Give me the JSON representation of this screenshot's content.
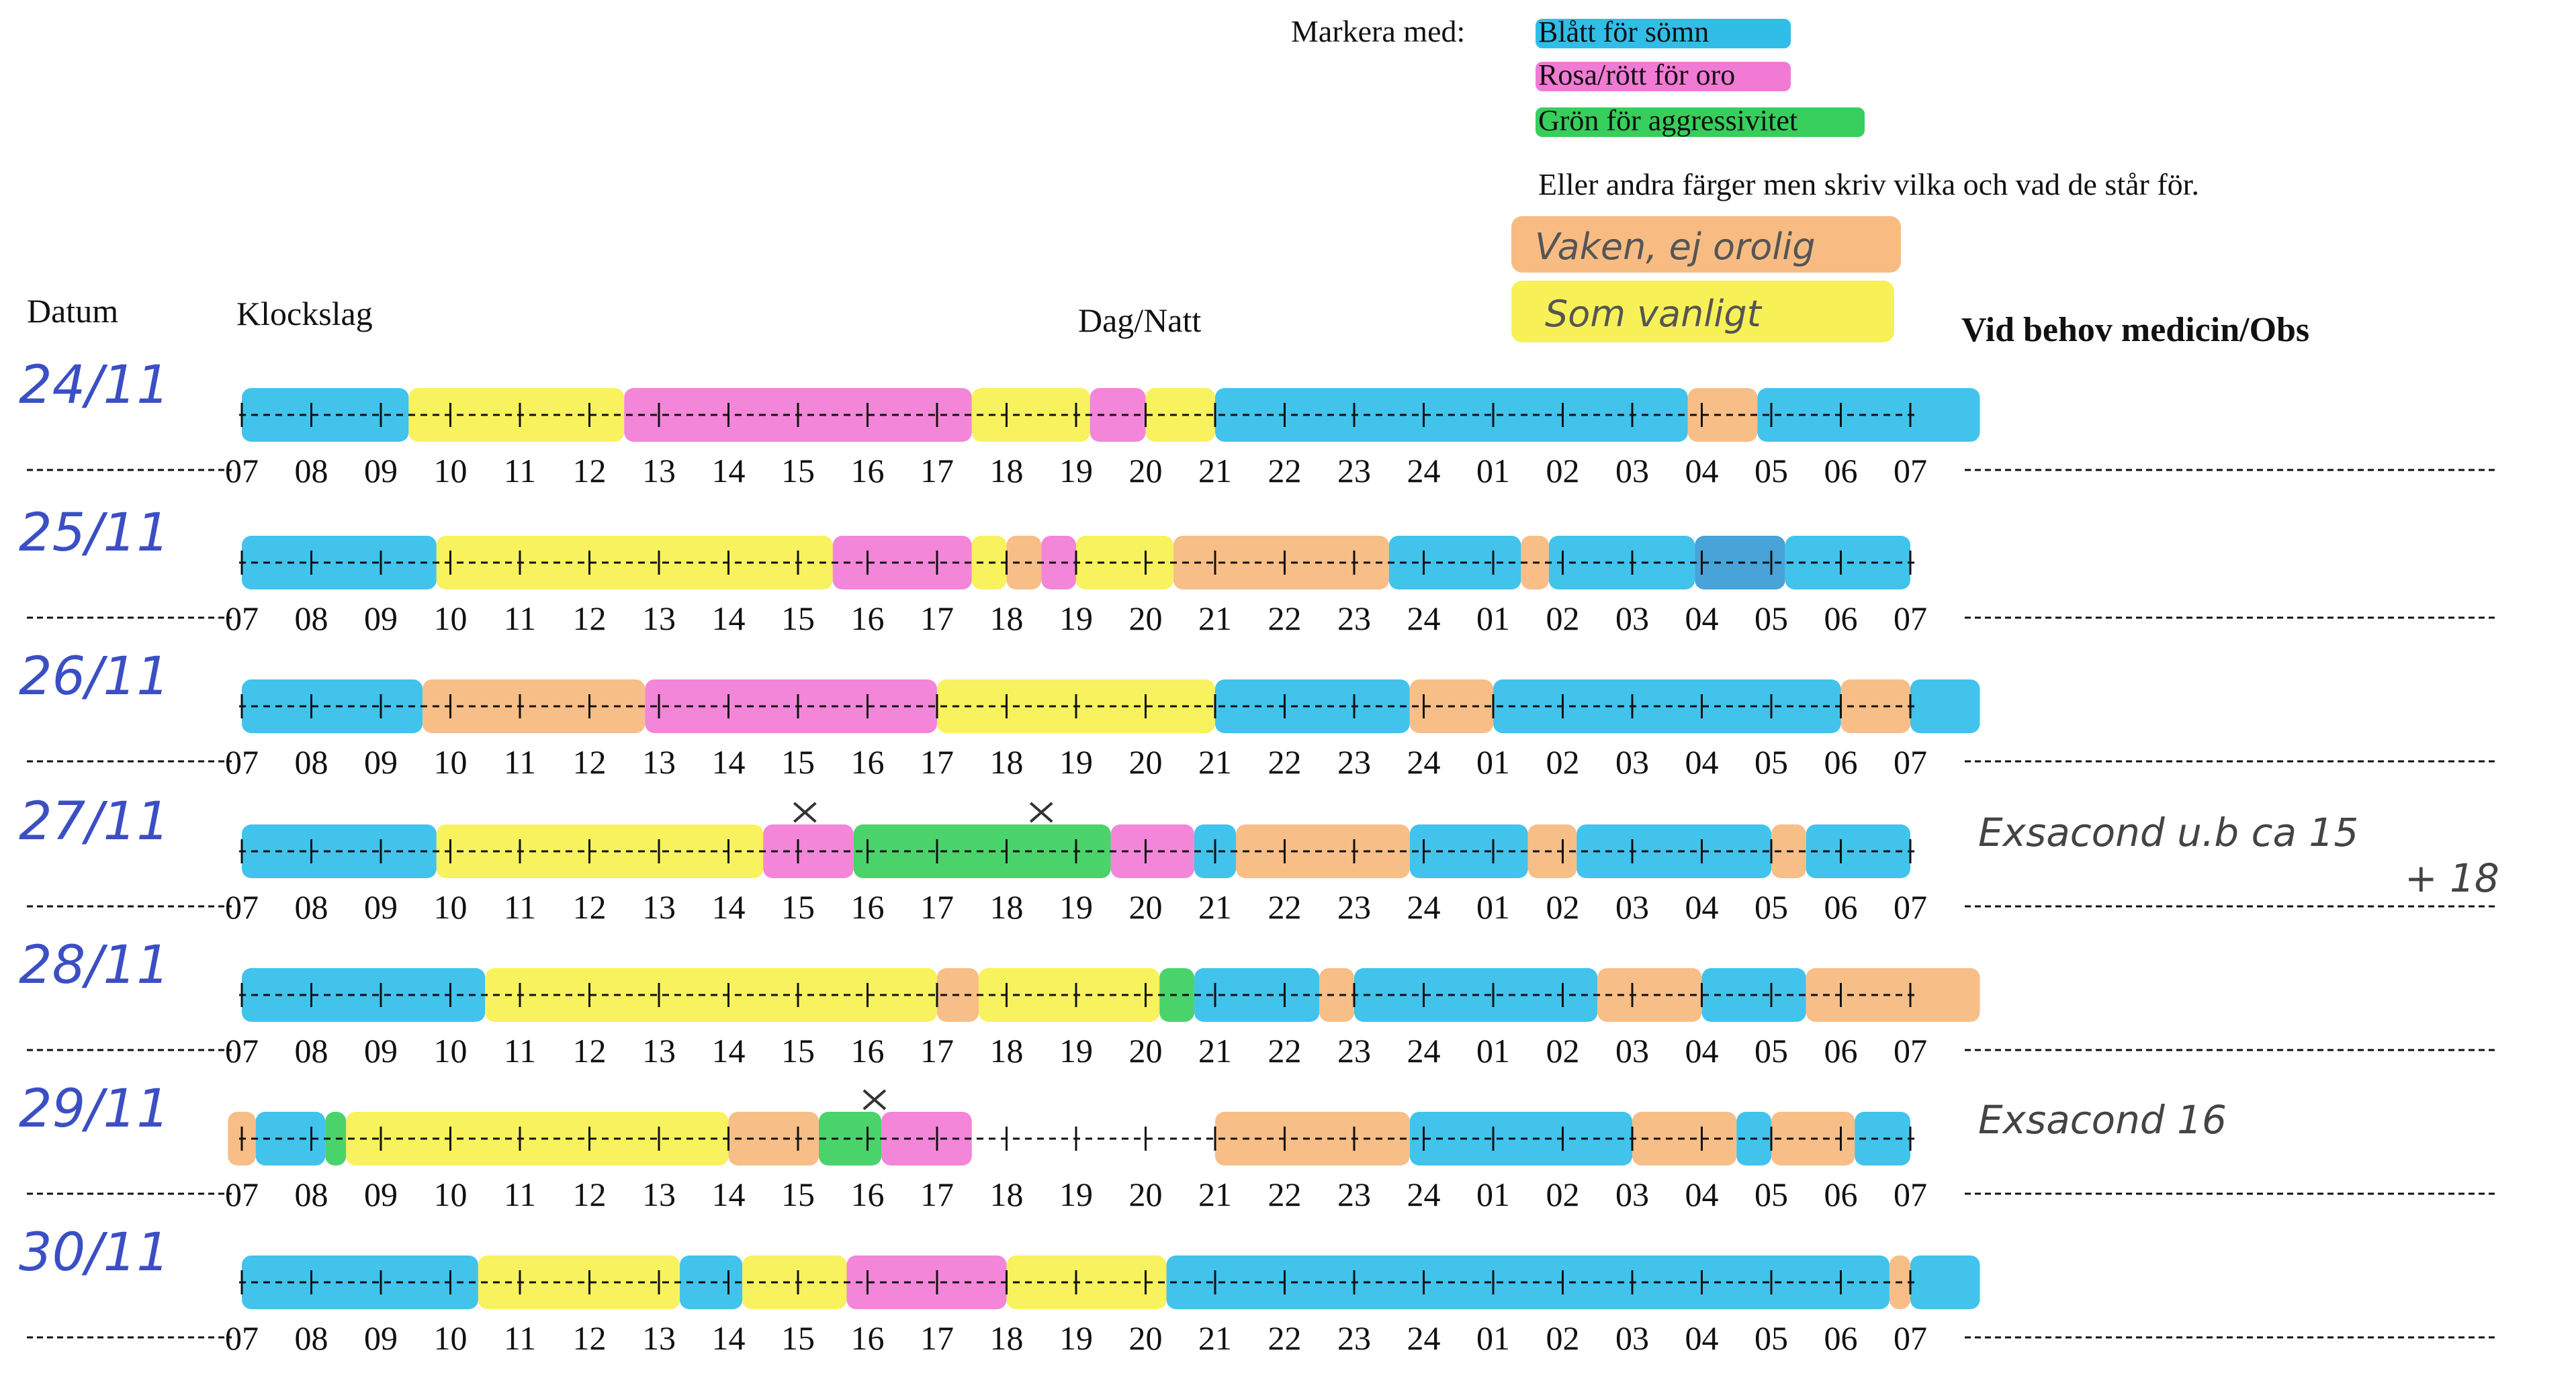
{
  "legend": {
    "intro": "Markera med:",
    "items": [
      {
        "text": "Blått för sömn",
        "color": "#19b6e6"
      },
      {
        "text": "Rosa/rött för oro",
        "color": "#f06bd0"
      },
      {
        "text": "Grön för aggressivitet",
        "color": "#22c94a"
      },
      {
        "text": "Eller andra färger men skriv vilka och vad de står för.",
        "color": ""
      }
    ],
    "custom": [
      {
        "text": "Vaken, ej orolig",
        "color": "#f7b06d"
      },
      {
        "text": "Som vanligt",
        "color": "#f6ef3a"
      }
    ]
  },
  "headers": {
    "datum": "Datum",
    "klockslag": "Klockslag",
    "dagnatt": "Dag/Natt",
    "obs": "Vid behov medicin/Obs"
  },
  "hours": [
    "07",
    "08",
    "09",
    "10",
    "11",
    "12",
    "13",
    "14",
    "15",
    "16",
    "17",
    "18",
    "19",
    "20",
    "21",
    "22",
    "23",
    "24",
    "01",
    "02",
    "03",
    "04",
    "05",
    "06",
    "07"
  ],
  "colors": {
    "B": "#19b6e6",
    "P": "#f06bd0",
    "G": "#22c94a",
    "O": "#f7b06d",
    "Y": "#f6ef3a",
    "D": "#1e8fd0"
  },
  "rows": [
    {
      "date": "24/11",
      "notes": [],
      "crosses": [],
      "segments": [
        [
          "B",
          0,
          2.4
        ],
        [
          "Y",
          2.4,
          5.5
        ],
        [
          "P",
          5.5,
          10.5
        ],
        [
          "Y",
          10.5,
          12.2
        ],
        [
          "P",
          12.2,
          13
        ],
        [
          "Y",
          13,
          14
        ],
        [
          "B",
          14,
          20.8
        ],
        [
          "O",
          20.8,
          21.8
        ],
        [
          "B",
          21.8,
          25
        ]
      ]
    },
    {
      "date": "25/11",
      "notes": [],
      "crosses": [],
      "segments": [
        [
          "B",
          0,
          2.8
        ],
        [
          "Y",
          2.8,
          8.5
        ],
        [
          "P",
          8.5,
          10.5
        ],
        [
          "Y",
          10.5,
          11
        ],
        [
          "O",
          11,
          11.5
        ],
        [
          "P",
          11.5,
          12
        ],
        [
          "Y",
          12,
          13.4
        ],
        [
          "O",
          13.4,
          16.5
        ],
        [
          "B",
          16.5,
          18.4
        ],
        [
          "O",
          18.4,
          18.8
        ],
        [
          "B",
          18.8,
          20.9
        ],
        [
          "D",
          20.9,
          22.2
        ],
        [
          "B",
          22.2,
          24
        ]
      ]
    },
    {
      "date": "26/11",
      "notes": [],
      "crosses": [],
      "segments": [
        [
          "B",
          0,
          2.6
        ],
        [
          "O",
          2.6,
          5.8
        ],
        [
          "P",
          5.8,
          10
        ],
        [
          "Y",
          10,
          14
        ],
        [
          "B",
          14,
          16.8
        ],
        [
          "O",
          16.8,
          18
        ],
        [
          "B",
          18,
          23
        ],
        [
          "O",
          23,
          24
        ],
        [
          "B",
          24,
          25
        ]
      ]
    },
    {
      "date": "27/11",
      "notes": [
        "Exsacond u.b ca 15",
        "+ 18"
      ],
      "crosses": [
        8.1,
        11.5
      ],
      "segments": [
        [
          "B",
          0,
          2.8
        ],
        [
          "Y",
          2.8,
          7.5
        ],
        [
          "P",
          7.5,
          8.8
        ],
        [
          "G",
          8.8,
          12.5
        ],
        [
          "P",
          12.5,
          13.7
        ],
        [
          "B",
          13.7,
          14.3
        ],
        [
          "O",
          14.3,
          16.8
        ],
        [
          "B",
          16.8,
          18.5
        ],
        [
          "O",
          18.5,
          19.2
        ],
        [
          "B",
          19.2,
          22
        ],
        [
          "O",
          22,
          22.5
        ],
        [
          "B",
          22.5,
          24
        ]
      ]
    },
    {
      "date": "28/11",
      "notes": [],
      "crosses": [],
      "segments": [
        [
          "B",
          0,
          3.5
        ],
        [
          "Y",
          3.5,
          10
        ],
        [
          "O",
          10,
          10.6
        ],
        [
          "Y",
          10.6,
          13.2
        ],
        [
          "G",
          13.2,
          13.7
        ],
        [
          "B",
          13.7,
          15.5
        ],
        [
          "O",
          15.5,
          16
        ],
        [
          "B",
          16,
          19.5
        ],
        [
          "O",
          19.5,
          21
        ],
        [
          "B",
          21,
          22.5
        ],
        [
          "O",
          22.5,
          25
        ]
      ]
    },
    {
      "date": "29/11",
      "notes": [
        "Exsacond 16"
      ],
      "crosses": [
        9.1
      ],
      "segments": [
        [
          "O",
          -0.2,
          0.2
        ],
        [
          "B",
          0.2,
          1.2
        ],
        [
          "G",
          1.2,
          1.5
        ],
        [
          "Y",
          1.5,
          7
        ],
        [
          "O",
          7,
          8.3
        ],
        [
          "G",
          8.3,
          9.2
        ],
        [
          "P",
          9.2,
          10.5
        ],
        [
          "O",
          14,
          16.8
        ],
        [
          "B",
          16.8,
          20
        ],
        [
          "O",
          20,
          21.5
        ],
        [
          "B",
          21.5,
          22
        ],
        [
          "O",
          22,
          23.2
        ],
        [
          "B",
          23.2,
          24
        ]
      ]
    },
    {
      "date": "30/11",
      "notes": [],
      "crosses": [],
      "segments": [
        [
          "B",
          0,
          3.4
        ],
        [
          "Y",
          3.4,
          6.3
        ],
        [
          "B",
          6.3,
          7.2
        ],
        [
          "Y",
          7.2,
          8.7
        ],
        [
          "P",
          8.7,
          11
        ],
        [
          "Y",
          11,
          13.3
        ],
        [
          "B",
          13.3,
          23.7
        ],
        [
          "O",
          23.7,
          24
        ],
        [
          "B",
          24,
          25
        ]
      ]
    }
  ]
}
